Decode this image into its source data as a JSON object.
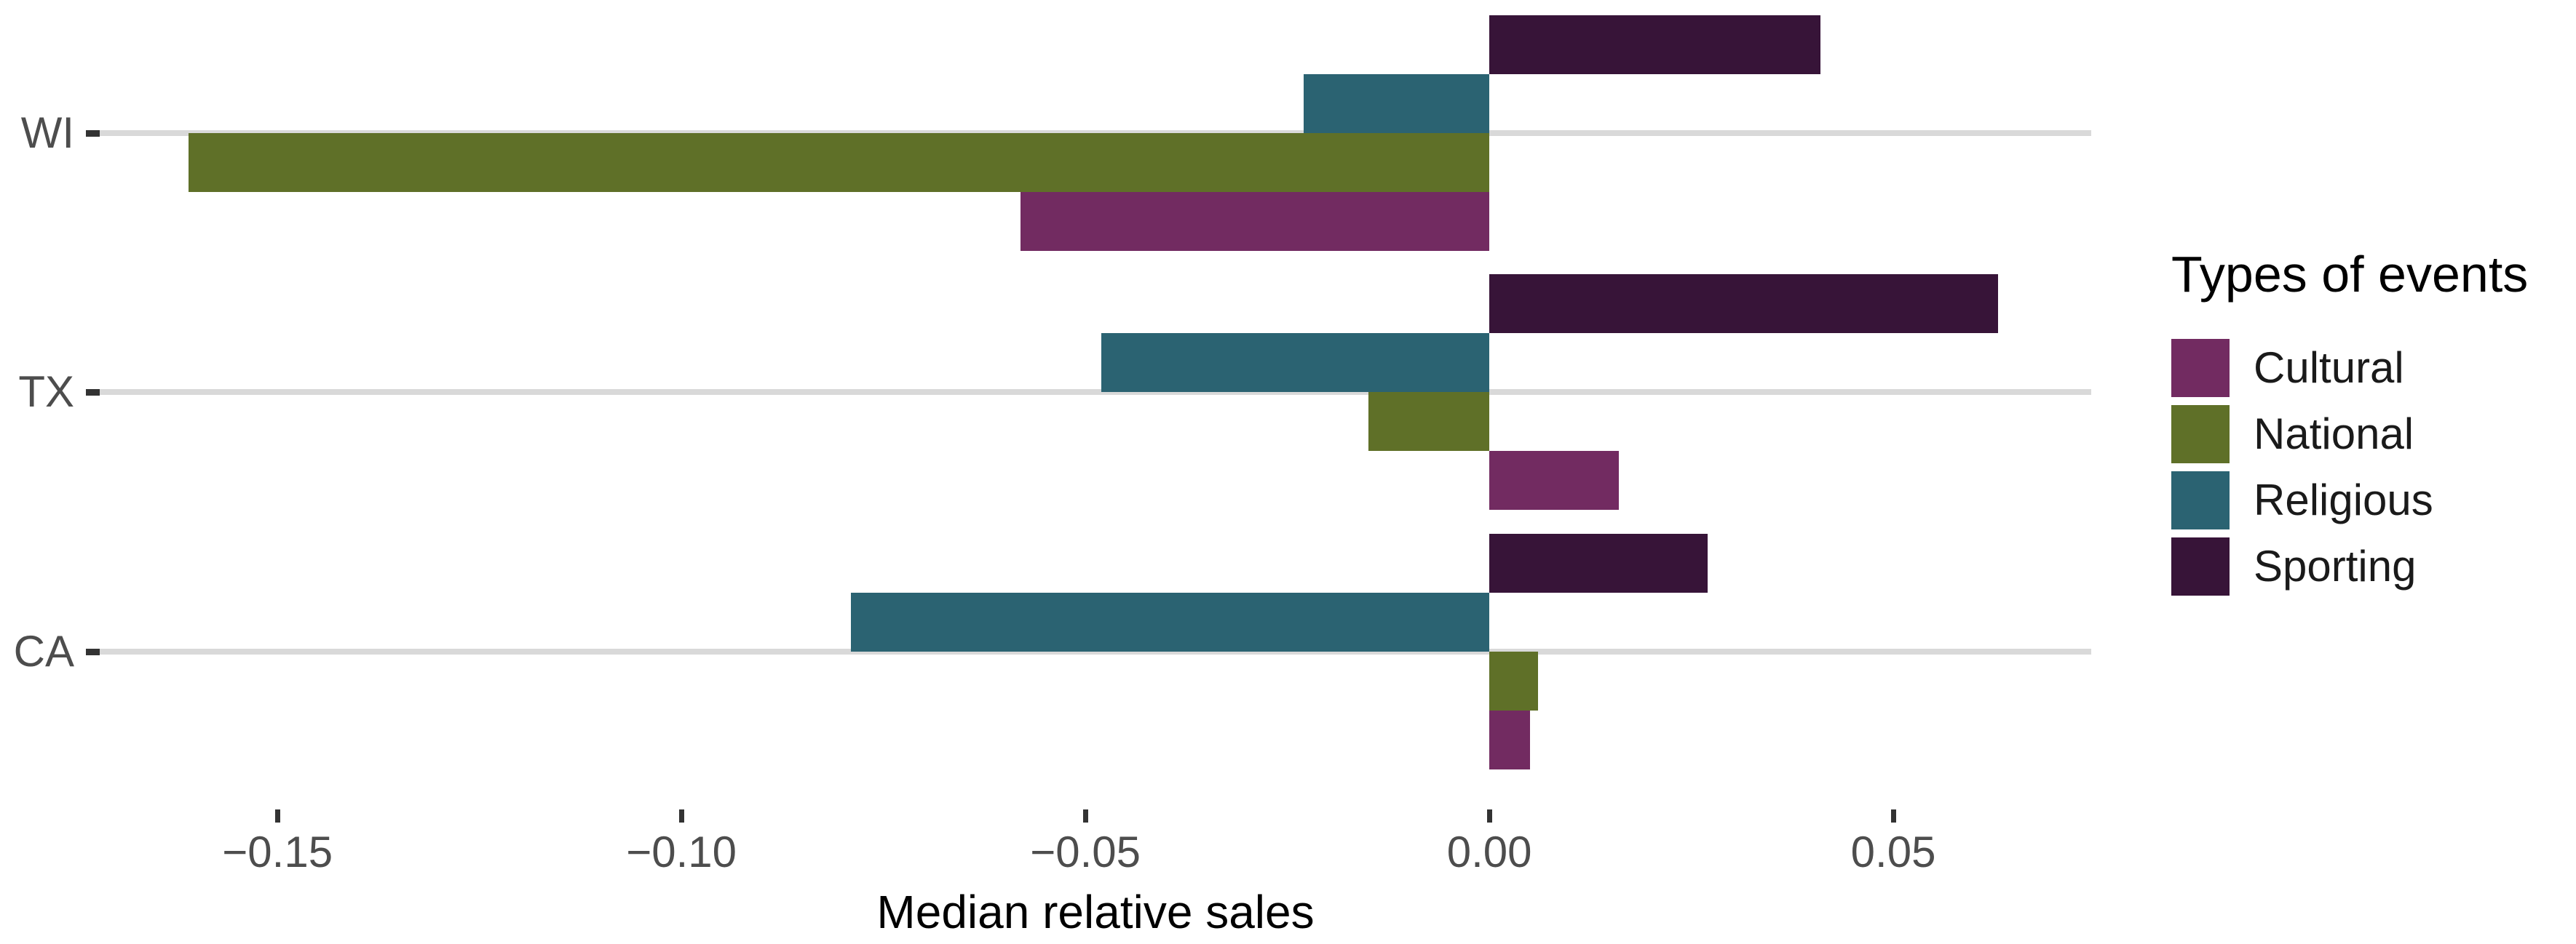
{
  "chart_data": {
    "type": "bar",
    "orientation": "horizontal",
    "xlabel": "Median relative sales",
    "ylabel": "",
    "categories": [
      "WI",
      "TX",
      "CA"
    ],
    "series": [
      {
        "name": "Cultural",
        "color": "#722b61",
        "values": [
          -0.058,
          0.016,
          0.005
        ]
      },
      {
        "name": "National",
        "color": "#5f7028",
        "values": [
          -0.161,
          -0.015,
          0.006
        ]
      },
      {
        "name": "Religious",
        "color": "#2b6372",
        "values": [
          -0.023,
          -0.048,
          -0.079
        ]
      },
      {
        "name": "Sporting",
        "color": "#371438",
        "values": [
          0.041,
          0.063,
          0.027
        ]
      }
    ],
    "bar_order_top_to_bottom": [
      "Sporting",
      "Religious",
      "National",
      "Cultural"
    ],
    "x_ticks": [
      -0.15,
      -0.1,
      -0.05,
      0.0,
      0.05
    ],
    "x_tick_labels": [
      "−0.15",
      "−0.10",
      "−0.05",
      "0.00",
      "0.05"
    ],
    "xlim": [
      -0.172,
      0.0745
    ],
    "grid": "horizontal-major-only",
    "legend_title": "Types of events",
    "legend_position": "right",
    "colors": {
      "gridline": "#d9d9d9",
      "tick": "#333333",
      "axis_text": "#4d4d4d",
      "title_text": "#000000",
      "background": "#ffffff"
    }
  }
}
